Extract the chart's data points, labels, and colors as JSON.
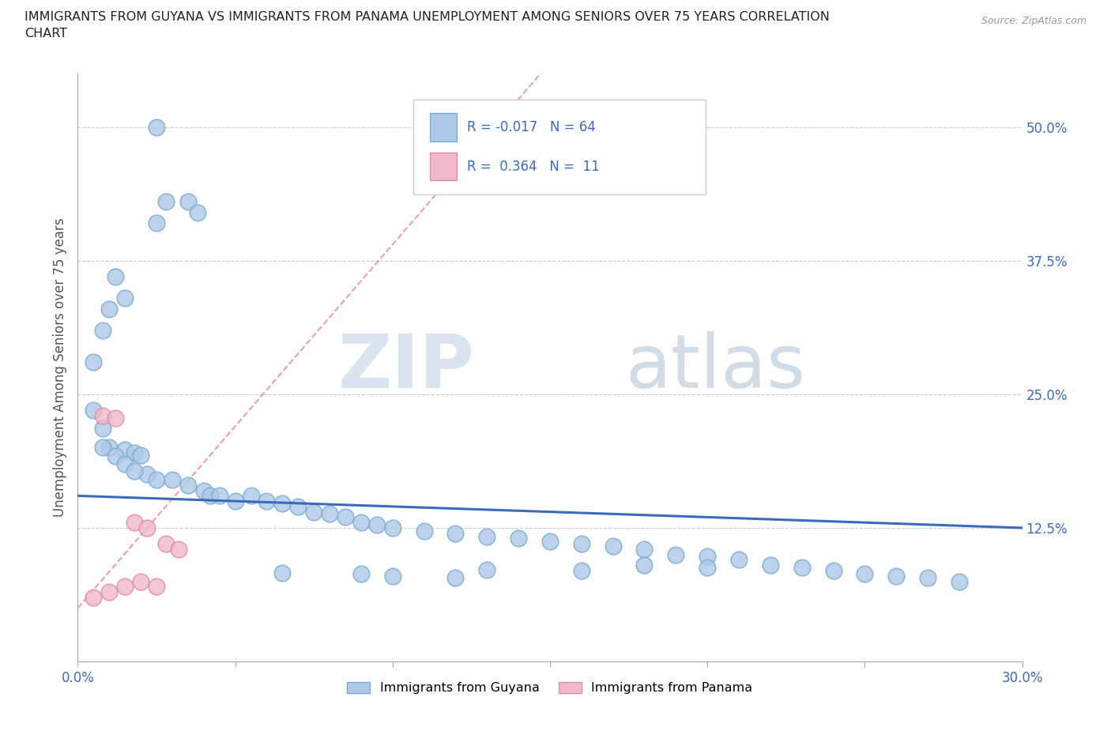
{
  "title_line1": "IMMIGRANTS FROM GUYANA VS IMMIGRANTS FROM PANAMA UNEMPLOYMENT AMONG SENIORS OVER 75 YEARS CORRELATION",
  "title_line2": "CHART",
  "source_text": "Source: ZipAtlas.com",
  "ylabel": "Unemployment Among Seniors over 75 years",
  "xlim": [
    0.0,
    0.3
  ],
  "ylim": [
    0.0,
    0.55
  ],
  "x_ticks": [
    0.0,
    0.05,
    0.1,
    0.15,
    0.2,
    0.25,
    0.3
  ],
  "x_tick_labels": [
    "0.0%",
    "",
    "",
    "",
    "",
    "",
    "30.0%"
  ],
  "y_ticks": [
    0.0,
    0.125,
    0.25,
    0.375,
    0.5
  ],
  "y_tick_labels": [
    "",
    "12.5%",
    "25.0%",
    "37.5%",
    "50.0%"
  ],
  "watermark1": "ZIP",
  "watermark2": "atlas",
  "background_color": "#ffffff",
  "grid_color": "#cccccc",
  "guyana_color": "#adc8e8",
  "panama_color": "#f0b8c8",
  "guyana_edge_color": "#7aaad0",
  "panama_edge_color": "#e08aaa",
  "trend_guyana_color": "#3a6abf",
  "trend_panama_color": "#e06070",
  "legend_r_color": "#3a6abf",
  "legend_n_color": "#3a6abf",
  "tick_color": "#3a6abf",
  "ylabel_color": "#555555",
  "R_guyana": -0.017,
  "N_guyana": 64,
  "R_panama": 0.364,
  "N_panama": 11,
  "guyana_x": [
    0.025,
    0.035,
    0.025,
    0.028,
    0.038,
    0.012,
    0.015,
    0.01,
    0.008,
    0.005,
    0.005,
    0.008,
    0.01,
    0.015,
    0.018,
    0.02,
    0.022,
    0.008,
    0.012,
    0.015,
    0.018,
    0.025,
    0.03,
    0.035,
    0.04,
    0.042,
    0.045,
    0.05,
    0.055,
    0.06,
    0.065,
    0.07,
    0.075,
    0.08,
    0.085,
    0.09,
    0.095,
    0.1,
    0.11,
    0.12,
    0.13,
    0.14,
    0.15,
    0.16,
    0.17,
    0.18,
    0.19,
    0.2,
    0.21,
    0.22,
    0.23,
    0.24,
    0.25,
    0.26,
    0.27,
    0.28,
    0.18,
    0.2,
    0.13,
    0.16,
    0.065,
    0.09,
    0.1,
    0.12
  ],
  "guyana_y": [
    0.5,
    0.43,
    0.41,
    0.43,
    0.42,
    0.36,
    0.34,
    0.33,
    0.31,
    0.28,
    0.235,
    0.218,
    0.2,
    0.198,
    0.195,
    0.193,
    0.175,
    0.2,
    0.192,
    0.185,
    0.178,
    0.17,
    0.17,
    0.165,
    0.16,
    0.155,
    0.155,
    0.15,
    0.155,
    0.15,
    0.148,
    0.145,
    0.14,
    0.138,
    0.135,
    0.13,
    0.128,
    0.125,
    0.122,
    0.12,
    0.117,
    0.115,
    0.112,
    0.11,
    0.108,
    0.105,
    0.1,
    0.098,
    0.095,
    0.09,
    0.088,
    0.085,
    0.082,
    0.08,
    0.078,
    0.075,
    0.09,
    0.088,
    0.086,
    0.085,
    0.083,
    0.082,
    0.08,
    0.078
  ],
  "panama_x": [
    0.005,
    0.01,
    0.015,
    0.02,
    0.025,
    0.008,
    0.012,
    0.018,
    0.022,
    0.028,
    0.032
  ],
  "panama_y": [
    0.06,
    0.065,
    0.07,
    0.075,
    0.07,
    0.23,
    0.228,
    0.13,
    0.125,
    0.11,
    0.105
  ]
}
